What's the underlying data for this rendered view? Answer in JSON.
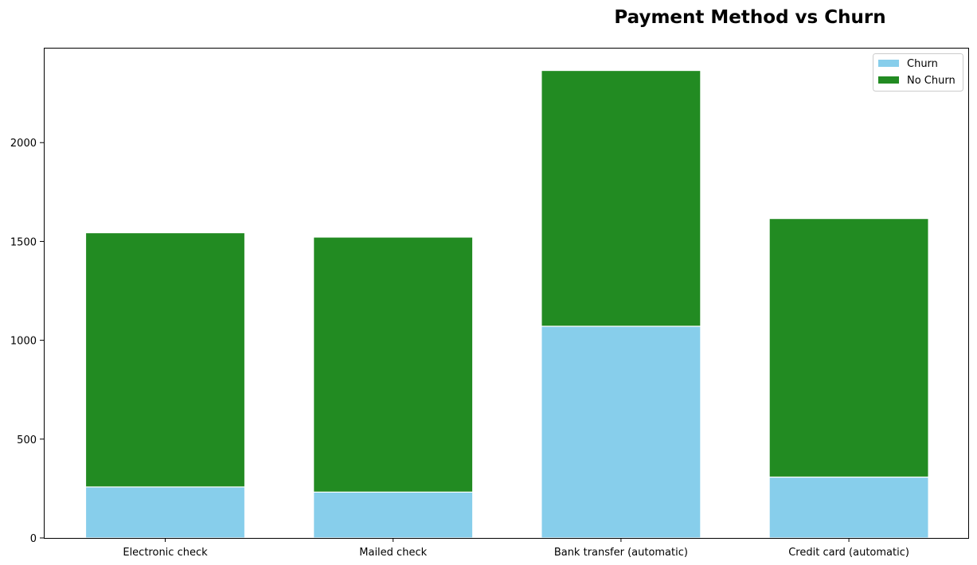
{
  "chart_data": {
    "type": "bar",
    "stacked": true,
    "title": "Payment Method vs Churn",
    "xlabel": "",
    "ylabel": "",
    "categories": [
      "Electronic check",
      "Mailed check",
      "Bank transfer (automatic)",
      "Credit card (automatic)"
    ],
    "series": [
      {
        "name": "Churn",
        "color": "#87CEEB",
        "values": [
          258,
          232,
          1071,
          308
        ]
      },
      {
        "name": "No Churn",
        "color": "#228B22",
        "values": [
          1286,
          1290,
          1294,
          1308
        ]
      }
    ],
    "ylim": [
      0,
      2480
    ],
    "yticks": [
      0,
      500,
      1000,
      1500,
      2000
    ],
    "grid": false,
    "legend_position": "top-right"
  }
}
